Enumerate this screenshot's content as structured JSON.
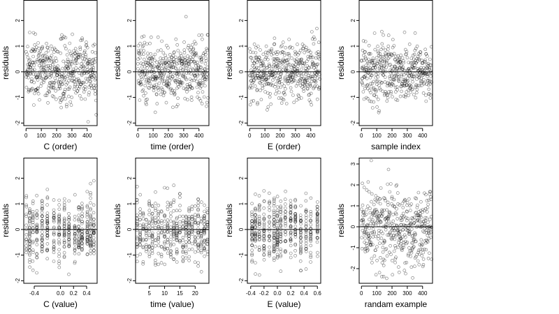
{
  "chart_data": [
    {
      "type": "scatter",
      "xlabel": "C (order)",
      "ylabel": "residuals",
      "xlim": [
        -15,
        465
      ],
      "ylim": [
        -2.1,
        2.8
      ],
      "xticks": [
        0,
        100,
        200,
        300,
        400
      ],
      "xtick_labels": [
        "0",
        "100",
        "200",
        "300",
        "400"
      ],
      "yticks": [
        -2,
        -1,
        0,
        1,
        2
      ],
      "ytick_labels": [
        "-2",
        "-1",
        "0",
        "1",
        "2"
      ],
      "hline": 0,
      "gen": {
        "kind": "order",
        "n": 460,
        "sd": 0.6,
        "seed": 1
      }
    },
    {
      "type": "scatter",
      "xlabel": "time (order)",
      "ylabel": "residuals",
      "xlim": [
        -15,
        465
      ],
      "ylim": [
        -2.1,
        2.8
      ],
      "xticks": [
        0,
        100,
        200,
        300,
        400
      ],
      "xtick_labels": [
        "0",
        "100",
        "200",
        "300",
        "400"
      ],
      "yticks": [
        -2,
        -1,
        0,
        1,
        2
      ],
      "ytick_labels": [
        "-2",
        "-1",
        "0",
        "1",
        "2"
      ],
      "hline": 0,
      "gen": {
        "kind": "order",
        "n": 460,
        "sd": 0.6,
        "seed": 2
      }
    },
    {
      "type": "scatter",
      "xlabel": "E (order)",
      "ylabel": "residuals",
      "xlim": [
        -15,
        465
      ],
      "ylim": [
        -2.1,
        2.8
      ],
      "xticks": [
        0,
        100,
        200,
        300,
        400
      ],
      "xtick_labels": [
        "0",
        "100",
        "200",
        "300",
        "400"
      ],
      "yticks": [
        -2,
        -1,
        0,
        1,
        2
      ],
      "ytick_labels": [
        "-2",
        "-1",
        "0",
        "1",
        "2"
      ],
      "hline": 0,
      "gen": {
        "kind": "order",
        "n": 460,
        "sd": 0.6,
        "seed": 3
      }
    },
    {
      "type": "scatter",
      "xlabel": "sample index",
      "ylabel": "residuals",
      "xlim": [
        -15,
        465
      ],
      "ylim": [
        -2.1,
        2.8
      ],
      "xticks": [
        0,
        100,
        200,
        300,
        400
      ],
      "xtick_labels": [
        "0",
        "100",
        "200",
        "300",
        "400"
      ],
      "yticks": [
        -2,
        -1,
        0,
        1,
        2
      ],
      "ytick_labels": [
        "-2",
        "-1",
        "0",
        "1",
        "2"
      ],
      "hline": 0,
      "gen": {
        "kind": "order",
        "n": 460,
        "sd": 0.6,
        "seed": 4
      }
    },
    {
      "type": "scatter",
      "xlabel": "C (value)",
      "ylabel": "residuals",
      "xlim": [
        -0.56,
        0.56
      ],
      "ylim": [
        -2.1,
        2.8
      ],
      "xticks": [
        -0.4,
        0.0,
        0.2,
        0.4
      ],
      "xtick_labels": [
        "-0.4",
        "0.0",
        "0.2",
        "0.4"
      ],
      "yticks": [
        -2,
        -1,
        0,
        1,
        2
      ],
      "ytick_labels": [
        "-2",
        "-1",
        "0",
        "1",
        "2"
      ],
      "hline": 0,
      "gen": {
        "kind": "grouped",
        "groups": [
          -0.52,
          -0.47,
          -0.42,
          -0.36,
          -0.28,
          -0.2,
          -0.1,
          -0.02,
          0.06,
          0.13,
          0.22,
          0.28,
          0.33,
          0.41,
          0.46,
          0.51
        ],
        "n": 460,
        "sd": 0.6,
        "seed": 5
      }
    },
    {
      "type": "scatter",
      "xlabel": "time (value)",
      "ylabel": "residuals",
      "xlim": [
        0.5,
        24.5
      ],
      "ylim": [
        -2.1,
        2.8
      ],
      "xticks": [
        5,
        10,
        15,
        20
      ],
      "xtick_labels": [
        "5",
        "10",
        "15",
        "20"
      ],
      "yticks": [
        -2,
        -1,
        0,
        1,
        2
      ],
      "ytick_labels": [
        "-2",
        "-1",
        "0",
        "1",
        "2"
      ],
      "hline": 0,
      "gen": {
        "kind": "grouped",
        "groups": [
          1,
          2,
          3,
          4,
          5,
          6,
          7,
          8,
          9,
          10,
          11,
          12,
          13,
          14,
          15,
          16,
          17,
          18,
          19,
          20,
          21,
          22,
          23,
          24
        ],
        "n": 460,
        "sd": 0.6,
        "seed": 6
      }
    },
    {
      "type": "scatter",
      "xlabel": "E (value)",
      "ylabel": "residuals",
      "xlim": [
        -0.45,
        0.65
      ],
      "ylim": [
        -2.1,
        2.8
      ],
      "xticks": [
        -0.4,
        -0.2,
        0.0,
        0.2,
        0.4,
        0.6
      ],
      "xtick_labels": [
        "-0.4",
        "-0.2",
        "0.0",
        "0.2",
        "0.4",
        "0.6"
      ],
      "yticks": [
        -2,
        -1,
        0,
        1,
        2
      ],
      "ytick_labels": [
        "-2",
        "-1",
        "0",
        "1",
        "2"
      ],
      "hline": 0,
      "gen": {
        "kind": "grouped",
        "groups": [
          -0.38,
          -0.33,
          -0.27,
          -0.2,
          -0.12,
          -0.05,
          0.0,
          0.05,
          0.12,
          0.2,
          0.27,
          0.35,
          0.43,
          0.5,
          0.6
        ],
        "n": 460,
        "sd": 0.6,
        "seed": 7
      }
    },
    {
      "type": "scatter",
      "xlabel": "randam example",
      "ylabel": "residuals",
      "xlim": [
        -15,
        465
      ],
      "ylim": [
        -2.7,
        3.3
      ],
      "xticks": [
        0,
        100,
        200,
        300,
        400
      ],
      "xtick_labels": [
        "0",
        "100",
        "200",
        "300",
        "400"
      ],
      "yticks": [
        -2,
        -1,
        0,
        1,
        2,
        3
      ],
      "ytick_labels": [
        "-2",
        "-1",
        "0",
        "1",
        "2",
        "3"
      ],
      "hline": 0,
      "gen": {
        "kind": "order",
        "n": 460,
        "sd": 1.0,
        "seed": 8
      }
    }
  ]
}
